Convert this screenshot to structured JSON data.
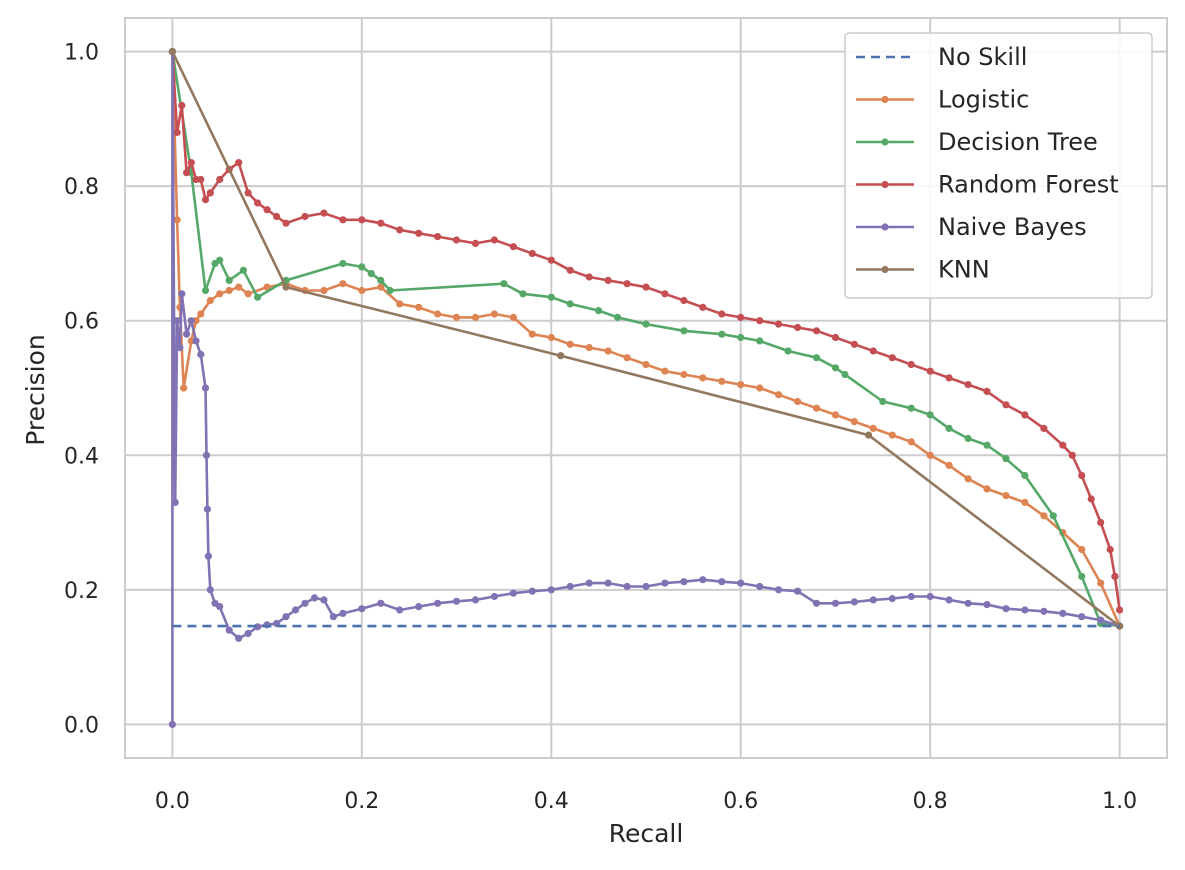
{
  "chart_data": {
    "type": "line",
    "title": "",
    "xlabel": "Recall",
    "ylabel": "Precision",
    "xlim": [
      -0.05,
      1.05
    ],
    "ylim": [
      -0.05,
      1.05
    ],
    "xticks": [
      "0.0",
      "0.2",
      "0.4",
      "0.6",
      "0.8",
      "1.0"
    ],
    "yticks": [
      "0.0",
      "0.2",
      "0.4",
      "0.6",
      "0.8",
      "1.0"
    ],
    "grid": true,
    "legend_position": "top-right",
    "series": [
      {
        "name": "No Skill",
        "color": "#4c72b0",
        "style": "dashed",
        "markers": false,
        "points": [
          [
            0.0,
            0.146
          ],
          [
            1.0,
            0.146
          ]
        ]
      },
      {
        "name": "Logistic",
        "color": "#dd8452",
        "style": "solid",
        "markers": true,
        "points": [
          [
            0.0,
            1.0
          ],
          [
            0.005,
            0.75
          ],
          [
            0.008,
            0.62
          ],
          [
            0.012,
            0.5
          ],
          [
            0.02,
            0.57
          ],
          [
            0.025,
            0.6
          ],
          [
            0.03,
            0.61
          ],
          [
            0.04,
            0.63
          ],
          [
            0.05,
            0.64
          ],
          [
            0.06,
            0.645
          ],
          [
            0.07,
            0.65
          ],
          [
            0.08,
            0.64
          ],
          [
            0.1,
            0.65
          ],
          [
            0.12,
            0.655
          ],
          [
            0.14,
            0.645
          ],
          [
            0.16,
            0.645
          ],
          [
            0.18,
            0.655
          ],
          [
            0.2,
            0.645
          ],
          [
            0.22,
            0.65
          ],
          [
            0.24,
            0.625
          ],
          [
            0.26,
            0.62
          ],
          [
            0.28,
            0.61
          ],
          [
            0.3,
            0.605
          ],
          [
            0.32,
            0.605
          ],
          [
            0.34,
            0.61
          ],
          [
            0.36,
            0.605
          ],
          [
            0.38,
            0.58
          ],
          [
            0.4,
            0.575
          ],
          [
            0.42,
            0.565
          ],
          [
            0.44,
            0.56
          ],
          [
            0.46,
            0.555
          ],
          [
            0.48,
            0.545
          ],
          [
            0.5,
            0.535
          ],
          [
            0.52,
            0.525
          ],
          [
            0.54,
            0.52
          ],
          [
            0.56,
            0.515
          ],
          [
            0.58,
            0.51
          ],
          [
            0.6,
            0.505
          ],
          [
            0.62,
            0.5
          ],
          [
            0.64,
            0.49
          ],
          [
            0.66,
            0.48
          ],
          [
            0.68,
            0.47
          ],
          [
            0.7,
            0.46
          ],
          [
            0.72,
            0.45
          ],
          [
            0.74,
            0.44
          ],
          [
            0.76,
            0.43
          ],
          [
            0.78,
            0.42
          ],
          [
            0.8,
            0.4
          ],
          [
            0.82,
            0.385
          ],
          [
            0.84,
            0.365
          ],
          [
            0.86,
            0.35
          ],
          [
            0.88,
            0.34
          ],
          [
            0.9,
            0.33
          ],
          [
            0.92,
            0.31
          ],
          [
            0.94,
            0.285
          ],
          [
            0.96,
            0.26
          ],
          [
            0.98,
            0.21
          ],
          [
            1.0,
            0.146
          ]
        ]
      },
      {
        "name": "Decision Tree",
        "color": "#55a868",
        "style": "solid",
        "markers": true,
        "points": [
          [
            0.0,
            1.0
          ],
          [
            0.02,
            0.82
          ],
          [
            0.035,
            0.645
          ],
          [
            0.045,
            0.685
          ],
          [
            0.05,
            0.69
          ],
          [
            0.06,
            0.66
          ],
          [
            0.075,
            0.675
          ],
          [
            0.09,
            0.635
          ],
          [
            0.12,
            0.66
          ],
          [
            0.18,
            0.685
          ],
          [
            0.2,
            0.68
          ],
          [
            0.21,
            0.67
          ],
          [
            0.22,
            0.66
          ],
          [
            0.23,
            0.645
          ],
          [
            0.35,
            0.655
          ],
          [
            0.37,
            0.64
          ],
          [
            0.4,
            0.635
          ],
          [
            0.42,
            0.625
          ],
          [
            0.45,
            0.615
          ],
          [
            0.47,
            0.605
          ],
          [
            0.5,
            0.595
          ],
          [
            0.54,
            0.585
          ],
          [
            0.58,
            0.58
          ],
          [
            0.6,
            0.575
          ],
          [
            0.62,
            0.57
          ],
          [
            0.65,
            0.555
          ],
          [
            0.68,
            0.545
          ],
          [
            0.7,
            0.53
          ],
          [
            0.71,
            0.52
          ],
          [
            0.75,
            0.48
          ],
          [
            0.78,
            0.47
          ],
          [
            0.8,
            0.46
          ],
          [
            0.82,
            0.44
          ],
          [
            0.84,
            0.425
          ],
          [
            0.86,
            0.415
          ],
          [
            0.88,
            0.395
          ],
          [
            0.9,
            0.37
          ],
          [
            0.93,
            0.31
          ],
          [
            0.96,
            0.22
          ],
          [
            0.98,
            0.15
          ],
          [
            1.0,
            0.146
          ]
        ]
      },
      {
        "name": "Random Forest",
        "color": "#c44e52",
        "style": "solid",
        "markers": true,
        "points": [
          [
            0.0,
            1.0
          ],
          [
            0.005,
            0.88
          ],
          [
            0.01,
            0.92
          ],
          [
            0.015,
            0.82
          ],
          [
            0.02,
            0.835
          ],
          [
            0.025,
            0.81
          ],
          [
            0.03,
            0.81
          ],
          [
            0.035,
            0.78
          ],
          [
            0.04,
            0.79
          ],
          [
            0.05,
            0.81
          ],
          [
            0.06,
            0.825
          ],
          [
            0.07,
            0.835
          ],
          [
            0.08,
            0.79
          ],
          [
            0.09,
            0.775
          ],
          [
            0.1,
            0.765
          ],
          [
            0.11,
            0.755
          ],
          [
            0.12,
            0.745
          ],
          [
            0.14,
            0.755
          ],
          [
            0.16,
            0.76
          ],
          [
            0.18,
            0.75
          ],
          [
            0.2,
            0.75
          ],
          [
            0.22,
            0.745
          ],
          [
            0.24,
            0.735
          ],
          [
            0.26,
            0.73
          ],
          [
            0.28,
            0.725
          ],
          [
            0.3,
            0.72
          ],
          [
            0.32,
            0.715
          ],
          [
            0.34,
            0.72
          ],
          [
            0.36,
            0.71
          ],
          [
            0.38,
            0.7
          ],
          [
            0.4,
            0.69
          ],
          [
            0.42,
            0.675
          ],
          [
            0.44,
            0.665
          ],
          [
            0.46,
            0.66
          ],
          [
            0.48,
            0.655
          ],
          [
            0.5,
            0.65
          ],
          [
            0.52,
            0.64
          ],
          [
            0.54,
            0.63
          ],
          [
            0.56,
            0.62
          ],
          [
            0.58,
            0.61
          ],
          [
            0.6,
            0.605
          ],
          [
            0.62,
            0.6
          ],
          [
            0.64,
            0.595
          ],
          [
            0.66,
            0.59
          ],
          [
            0.68,
            0.585
          ],
          [
            0.7,
            0.575
          ],
          [
            0.72,
            0.565
          ],
          [
            0.74,
            0.555
          ],
          [
            0.76,
            0.545
          ],
          [
            0.78,
            0.535
          ],
          [
            0.8,
            0.525
          ],
          [
            0.82,
            0.515
          ],
          [
            0.84,
            0.505
          ],
          [
            0.86,
            0.495
          ],
          [
            0.88,
            0.475
          ],
          [
            0.9,
            0.46
          ],
          [
            0.92,
            0.44
          ],
          [
            0.94,
            0.415
          ],
          [
            0.95,
            0.4
          ],
          [
            0.96,
            0.37
          ],
          [
            0.97,
            0.335
          ],
          [
            0.98,
            0.3
          ],
          [
            0.99,
            0.26
          ],
          [
            0.995,
            0.22
          ],
          [
            1.0,
            0.17
          ]
        ]
      },
      {
        "name": "Naive Bayes",
        "color": "#8172b3",
        "style": "solid",
        "markers": true,
        "points": [
          [
            0.0,
            0.0
          ],
          [
            0.0,
            1.0
          ],
          [
            0.003,
            0.33
          ],
          [
            0.005,
            0.6
          ],
          [
            0.008,
            0.56
          ],
          [
            0.01,
            0.64
          ],
          [
            0.015,
            0.58
          ],
          [
            0.02,
            0.6
          ],
          [
            0.025,
            0.57
          ],
          [
            0.03,
            0.55
          ],
          [
            0.035,
            0.5
          ],
          [
            0.036,
            0.4
          ],
          [
            0.037,
            0.32
          ],
          [
            0.038,
            0.25
          ],
          [
            0.04,
            0.2
          ],
          [
            0.045,
            0.18
          ],
          [
            0.05,
            0.175
          ],
          [
            0.06,
            0.14
          ],
          [
            0.07,
            0.128
          ],
          [
            0.08,
            0.135
          ],
          [
            0.09,
            0.145
          ],
          [
            0.1,
            0.148
          ],
          [
            0.11,
            0.15
          ],
          [
            0.12,
            0.16
          ],
          [
            0.13,
            0.17
          ],
          [
            0.14,
            0.18
          ],
          [
            0.15,
            0.188
          ],
          [
            0.16,
            0.185
          ],
          [
            0.17,
            0.16
          ],
          [
            0.18,
            0.165
          ],
          [
            0.2,
            0.172
          ],
          [
            0.22,
            0.18
          ],
          [
            0.24,
            0.17
          ],
          [
            0.26,
            0.175
          ],
          [
            0.28,
            0.18
          ],
          [
            0.3,
            0.183
          ],
          [
            0.32,
            0.185
          ],
          [
            0.34,
            0.19
          ],
          [
            0.36,
            0.195
          ],
          [
            0.38,
            0.198
          ],
          [
            0.4,
            0.2
          ],
          [
            0.42,
            0.205
          ],
          [
            0.44,
            0.21
          ],
          [
            0.46,
            0.21
          ],
          [
            0.48,
            0.205
          ],
          [
            0.5,
            0.205
          ],
          [
            0.52,
            0.21
          ],
          [
            0.54,
            0.212
          ],
          [
            0.56,
            0.215
          ],
          [
            0.58,
            0.212
          ],
          [
            0.6,
            0.21
          ],
          [
            0.62,
            0.205
          ],
          [
            0.64,
            0.2
          ],
          [
            0.66,
            0.198
          ],
          [
            0.68,
            0.18
          ],
          [
            0.7,
            0.18
          ],
          [
            0.72,
            0.182
          ],
          [
            0.74,
            0.185
          ],
          [
            0.76,
            0.187
          ],
          [
            0.78,
            0.19
          ],
          [
            0.8,
            0.19
          ],
          [
            0.82,
            0.185
          ],
          [
            0.84,
            0.18
          ],
          [
            0.86,
            0.178
          ],
          [
            0.88,
            0.172
          ],
          [
            0.9,
            0.17
          ],
          [
            0.92,
            0.168
          ],
          [
            0.94,
            0.165
          ],
          [
            0.96,
            0.16
          ],
          [
            0.98,
            0.155
          ],
          [
            1.0,
            0.146
          ]
        ]
      },
      {
        "name": "KNN",
        "color": "#937860",
        "style": "solid",
        "markers": true,
        "points": [
          [
            0.0,
            1.0
          ],
          [
            0.12,
            0.65
          ],
          [
            0.41,
            0.548
          ],
          [
            0.735,
            0.43
          ],
          [
            1.0,
            0.146
          ]
        ]
      }
    ]
  }
}
